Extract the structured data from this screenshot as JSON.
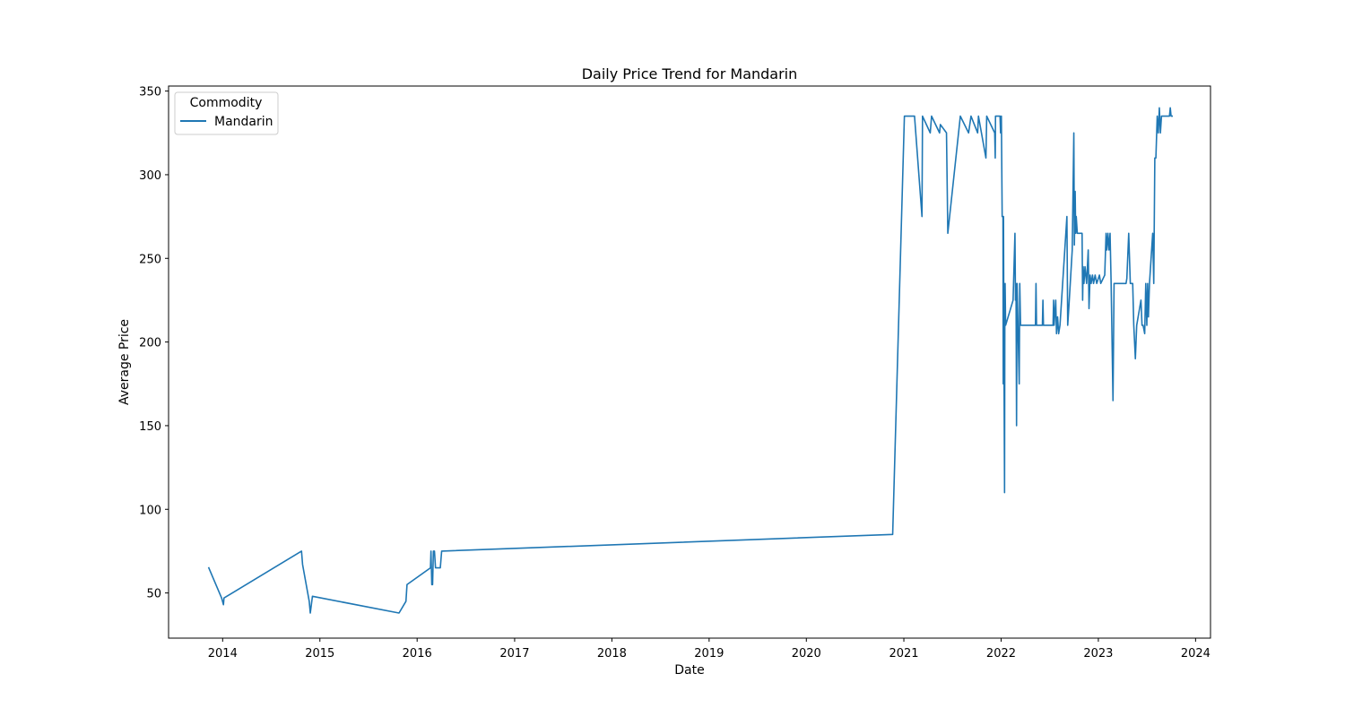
{
  "chart_data": {
    "type": "line",
    "title": "Daily Price Trend for Mandarin",
    "xlabel": "Date",
    "ylabel": "Average Price",
    "xlim": [
      "2013-06-12",
      "2024-02-26"
    ],
    "ylim": [
      23,
      353
    ],
    "x_ticks": [
      "2014-01-01",
      "2015-01-01",
      "2016-01-01",
      "2017-01-01",
      "2018-01-01",
      "2019-01-01",
      "2020-01-01",
      "2021-01-01",
      "2022-01-01",
      "2023-01-01",
      "2024-01-01"
    ],
    "x_tick_labels": [
      "2014",
      "2015",
      "2016",
      "2017",
      "2018",
      "2019",
      "2020",
      "2021",
      "2022",
      "2023",
      "2024"
    ],
    "y_ticks": [
      50,
      100,
      150,
      200,
      250,
      300,
      350
    ],
    "y_tick_labels": [
      "50",
      "100",
      "150",
      "200",
      "250",
      "300",
      "350"
    ],
    "grid": false,
    "legend": {
      "title": "Commodity",
      "placement": "upper-left"
    },
    "series": [
      {
        "name": "Mandarin",
        "color": "#1f77b4",
        "points": [
          [
            "2013-11-10",
            65
          ],
          [
            "2013-12-28",
            47
          ],
          [
            "2014-01-04",
            43
          ],
          [
            "2014-01-06",
            47
          ],
          [
            "2014-10-24",
            75
          ],
          [
            "2014-10-28",
            67
          ],
          [
            "2014-11-22",
            45
          ],
          [
            "2014-11-26",
            38
          ],
          [
            "2014-12-04",
            48
          ],
          [
            "2015-10-25",
            38
          ],
          [
            "2015-11-20",
            45
          ],
          [
            "2015-11-24",
            55
          ],
          [
            "2016-02-20",
            65
          ],
          [
            "2016-02-22",
            75
          ],
          [
            "2016-02-25",
            55
          ],
          [
            "2016-02-28",
            55
          ],
          [
            "2016-03-02",
            75
          ],
          [
            "2016-03-06",
            75
          ],
          [
            "2016-03-10",
            65
          ],
          [
            "2016-03-28",
            65
          ],
          [
            "2016-04-02",
            75
          ],
          [
            "2020-11-20",
            85
          ],
          [
            "2021-01-03",
            335
          ],
          [
            "2021-02-10",
            335
          ],
          [
            "2021-03-10",
            275
          ],
          [
            "2021-03-12",
            335
          ],
          [
            "2021-04-10",
            325
          ],
          [
            "2021-04-15",
            335
          ],
          [
            "2021-05-15",
            325
          ],
          [
            "2021-05-18",
            330
          ],
          [
            "2021-06-10",
            325
          ],
          [
            "2021-06-15",
            265
          ],
          [
            "2021-08-01",
            335
          ],
          [
            "2021-09-01",
            325
          ],
          [
            "2021-09-10",
            335
          ],
          [
            "2021-10-05",
            325
          ],
          [
            "2021-10-08",
            335
          ],
          [
            "2021-11-05",
            310
          ],
          [
            "2021-11-08",
            335
          ],
          [
            "2021-12-08",
            325
          ],
          [
            "2021-12-10",
            310
          ],
          [
            "2021-12-11",
            335
          ],
          [
            "2021-12-28",
            335
          ],
          [
            "2021-12-30",
            325
          ],
          [
            "2022-01-02",
            335
          ],
          [
            "2022-01-05",
            275
          ],
          [
            "2022-01-08",
            275
          ],
          [
            "2022-01-09",
            175
          ],
          [
            "2022-01-10",
            275
          ],
          [
            "2022-01-12",
            180
          ],
          [
            "2022-01-14",
            110
          ],
          [
            "2022-01-15",
            210
          ],
          [
            "2022-01-16",
            235
          ],
          [
            "2022-01-18",
            210
          ],
          [
            "2022-02-15",
            225
          ],
          [
            "2022-02-22",
            265
          ],
          [
            "2022-02-24",
            225
          ],
          [
            "2022-02-26",
            235
          ],
          [
            "2022-02-28",
            150
          ],
          [
            "2022-03-02",
            235
          ],
          [
            "2022-03-10",
            175
          ],
          [
            "2022-03-12",
            235
          ],
          [
            "2022-03-15",
            210
          ],
          [
            "2022-05-10",
            210
          ],
          [
            "2022-05-12",
            235
          ],
          [
            "2022-05-14",
            210
          ],
          [
            "2022-06-05",
            210
          ],
          [
            "2022-06-07",
            225
          ],
          [
            "2022-06-09",
            210
          ],
          [
            "2022-07-15",
            210
          ],
          [
            "2022-07-17",
            225
          ],
          [
            "2022-07-19",
            210
          ],
          [
            "2022-07-25",
            225
          ],
          [
            "2022-07-28",
            205
          ],
          [
            "2022-08-01",
            215
          ],
          [
            "2022-08-05",
            205
          ],
          [
            "2022-08-10",
            210
          ],
          [
            "2022-09-05",
            275
          ],
          [
            "2022-09-08",
            210
          ],
          [
            "2022-09-12",
            220
          ],
          [
            "2022-09-25",
            255
          ],
          [
            "2022-10-01",
            325
          ],
          [
            "2022-10-03",
            258
          ],
          [
            "2022-10-06",
            290
          ],
          [
            "2022-10-08",
            265
          ],
          [
            "2022-10-10",
            275
          ],
          [
            "2022-10-14",
            265
          ],
          [
            "2022-11-01",
            265
          ],
          [
            "2022-11-03",
            225
          ],
          [
            "2022-11-05",
            245
          ],
          [
            "2022-11-08",
            235
          ],
          [
            "2022-11-12",
            245
          ],
          [
            "2022-11-18",
            235
          ],
          [
            "2022-11-24",
            255
          ],
          [
            "2022-11-27",
            220
          ],
          [
            "2022-12-01",
            240
          ],
          [
            "2022-12-05",
            235
          ],
          [
            "2022-12-10",
            240
          ],
          [
            "2022-12-14",
            235
          ],
          [
            "2022-12-20",
            240
          ],
          [
            "2022-12-26",
            235
          ],
          [
            "2023-01-05",
            240
          ],
          [
            "2023-01-10",
            235
          ],
          [
            "2023-01-25",
            240
          ],
          [
            "2023-01-30",
            265
          ],
          [
            "2023-02-02",
            255
          ],
          [
            "2023-02-06",
            265
          ],
          [
            "2023-02-10",
            255
          ],
          [
            "2023-02-14",
            265
          ],
          [
            "2023-02-18",
            235
          ],
          [
            "2023-02-25",
            165
          ],
          [
            "2023-03-01",
            235
          ],
          [
            "2023-04-15",
            235
          ],
          [
            "2023-04-18",
            238
          ],
          [
            "2023-04-25",
            265
          ],
          [
            "2023-05-01",
            235
          ],
          [
            "2023-05-10",
            235
          ],
          [
            "2023-05-14",
            210
          ],
          [
            "2023-05-20",
            190
          ],
          [
            "2023-05-25",
            210
          ],
          [
            "2023-06-10",
            225
          ],
          [
            "2023-06-14",
            210
          ],
          [
            "2023-06-18",
            210
          ],
          [
            "2023-06-24",
            205
          ],
          [
            "2023-06-28",
            235
          ],
          [
            "2023-07-02",
            210
          ],
          [
            "2023-07-05",
            235
          ],
          [
            "2023-07-08",
            215
          ],
          [
            "2023-07-12",
            235
          ],
          [
            "2023-07-20",
            255
          ],
          [
            "2023-07-24",
            265
          ],
          [
            "2023-07-28",
            235
          ],
          [
            "2023-08-01",
            310
          ],
          [
            "2023-08-05",
            310
          ],
          [
            "2023-08-10",
            335
          ],
          [
            "2023-08-14",
            325
          ],
          [
            "2023-08-18",
            340
          ],
          [
            "2023-08-22",
            325
          ],
          [
            "2023-08-26",
            335
          ],
          [
            "2023-09-25",
            335
          ],
          [
            "2023-09-28",
            340
          ],
          [
            "2023-10-01",
            335
          ],
          [
            "2023-10-05",
            335
          ]
        ]
      }
    ]
  }
}
